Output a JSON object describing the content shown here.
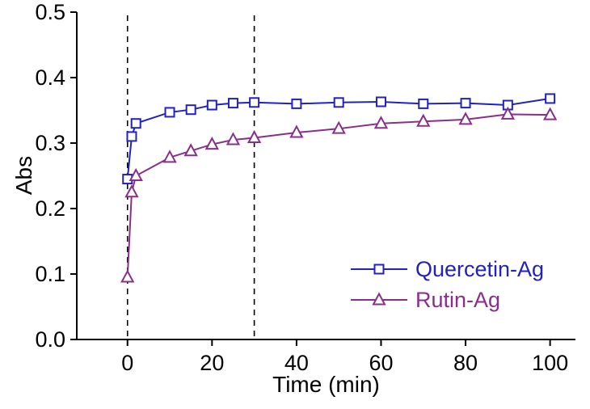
{
  "chart_data": {
    "type": "line",
    "title": "",
    "xlabel": "Time (min)",
    "ylabel": "Abs",
    "xlim": [
      -12,
      106
    ],
    "ylim": [
      0.0,
      0.5
    ],
    "xticks": [
      0,
      20,
      40,
      60,
      80,
      100
    ],
    "xtick_labels": [
      "0",
      "20",
      "40",
      "60",
      "80",
      "100"
    ],
    "yticks": [
      0.0,
      0.1,
      0.2,
      0.3,
      0.4,
      0.5
    ],
    "ytick_labels": [
      "0.0",
      "0.1",
      "0.2",
      "0.3",
      "0.4",
      "0.5"
    ],
    "grid": false,
    "vlines": [
      0,
      30
    ],
    "vline_style": "dashed",
    "vline_color": "#000000",
    "legend_position": "lower right",
    "series": [
      {
        "name": "Quercetin-Ag",
        "color": "#2222BE",
        "marker": "square",
        "x": [
          0,
          1,
          2,
          10,
          15,
          20,
          25,
          30,
          40,
          50,
          60,
          70,
          80,
          90,
          100
        ],
        "y": [
          0.245,
          0.31,
          0.33,
          0.347,
          0.351,
          0.358,
          0.361,
          0.362,
          0.36,
          0.362,
          0.363,
          0.36,
          0.361,
          0.358,
          0.368
        ]
      },
      {
        "name": "Rutin-Ag",
        "color": "#8B2E8B",
        "marker": "triangle-up",
        "x": [
          0,
          1,
          2,
          10,
          15,
          20,
          25,
          30,
          40,
          50,
          60,
          70,
          80,
          90,
          100
        ],
        "y": [
          0.095,
          0.225,
          0.25,
          0.278,
          0.288,
          0.298,
          0.305,
          0.308,
          0.316,
          0.322,
          0.33,
          0.333,
          0.336,
          0.344,
          0.343
        ]
      }
    ]
  }
}
